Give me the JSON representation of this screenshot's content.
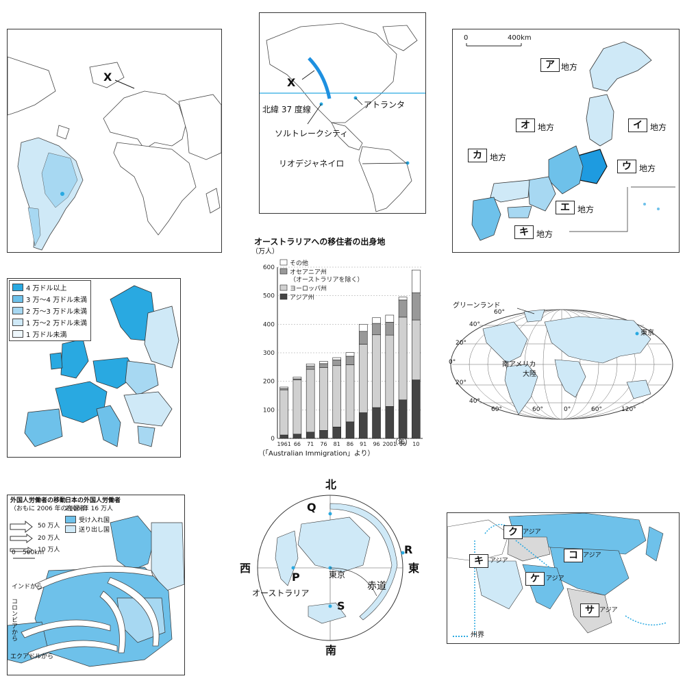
{
  "panel1": {
    "x_label": "X"
  },
  "panel2": {
    "x_label": "X",
    "latitude_label": "北緯 37 度線",
    "city1": "アトランタ",
    "city2": "ソルトレークシティ",
    "city3": "リオデジャネイロ"
  },
  "panel3": {
    "scale_zero": "0",
    "scale_400": "400km",
    "suffix": "地方",
    "regions": [
      "ア",
      "イ",
      "ウ",
      "エ",
      "オ",
      "カ",
      "キ"
    ]
  },
  "panel4": {
    "legend": [
      "4 万ドル以上",
      "3 万〜4 万ドル未満",
      "2 万〜3 万ドル未満",
      "1 万〜2 万ドル未満",
      "1 万ドル未満"
    ],
    "colors": {
      "c1": "#29a9e1",
      "c2": "#6ec1ea",
      "c3": "#a7d8f2",
      "c4": "#cfe9f7",
      "c5": "#eef7fc"
    }
  },
  "chart_data": {
    "type": "bar",
    "title": "オーストラリアへの移住者の出身地",
    "ylabel": "（万人）",
    "xlabel": "（年）",
    "source": "（「Australian Immigration」より）",
    "ylim": [
      0,
      600
    ],
    "yticks": [
      "0",
      "100",
      "200",
      "300",
      "400",
      "500",
      "600"
    ],
    "categories": [
      "1961",
      "66",
      "71",
      "76",
      "81",
      "86",
      "91",
      "96",
      "2001",
      "06",
      "10"
    ],
    "series": [
      {
        "name": "アジア州",
        "values": [
          12,
          15,
          22,
          28,
          40,
          58,
          90,
          108,
          112,
          135,
          205
        ],
        "color": "#444444"
      },
      {
        "name": "ヨーロッパ州",
        "values": [
          158,
          190,
          220,
          220,
          215,
          200,
          240,
          255,
          250,
          290,
          210
        ],
        "color": "#d0d0d0"
      },
      {
        "name": "オセアニア州\n（オーストラリアを除く）",
        "values": [
          5,
          4,
          12,
          14,
          20,
          30,
          45,
          40,
          45,
          60,
          95
        ],
        "color": "#999999"
      },
      {
        "name": "その他",
        "values": [
          5,
          6,
          7,
          8,
          8,
          13,
          25,
          20,
          25,
          10,
          80
        ],
        "color": "#ffffff"
      }
    ]
  },
  "panel6": {
    "greenland": "グリーンランド",
    "tokyo": "東京",
    "sa1": "南アメリカ",
    "sa2": "大陸",
    "lat_labels": [
      "60°",
      "40°",
      "20°",
      "0°",
      "20°",
      "40°"
    ],
    "lon_labels": [
      "60°",
      "60°",
      "0°",
      "60°",
      "120°"
    ]
  },
  "panel7": {
    "title_left1": "外国人労働者の移動",
    "title_left2": "（おもに 2006 年の在留者）",
    "title_right1": "日本の外国人労働者",
    "title_right2": "2006 年 16 万人",
    "arrow50": "50 万人",
    "arrow20": "20 万人",
    "arrow10": "10 万人",
    "leg_in": "受け入れ国",
    "leg_out": "送り出し国",
    "scale0": "0",
    "scale500": "500km",
    "india": "インドから",
    "colombia": "コロンビアから",
    "ecuador": "エクアドルから"
  },
  "panel8": {
    "north": "北",
    "south": "南",
    "east": "東",
    "west": "西",
    "Q": "Q",
    "R": "R",
    "P": "P",
    "S": "S",
    "tokyo": "東京",
    "equator": "赤道",
    "australia": "オーストラリア"
  },
  "panel9": {
    "suffix": "アジア",
    "regions": [
      "ク",
      "キ",
      "コ",
      "ケ",
      "サ"
    ],
    "legend": "州界"
  }
}
